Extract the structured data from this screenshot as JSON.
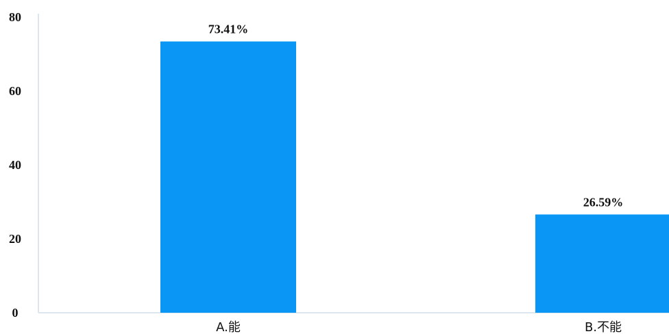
{
  "chart_data": {
    "type": "bar",
    "categories": [
      "A.能",
      "B.不能"
    ],
    "values": [
      73.41,
      26.59
    ],
    "data_labels": [
      "73.41%",
      "26.59%"
    ],
    "y_ticks": [
      "0",
      "20",
      "40",
      "60",
      "80"
    ],
    "y_tick_values": [
      0,
      20,
      40,
      60,
      80
    ],
    "ylim": [
      0,
      80
    ],
    "grid": false,
    "legend": "none",
    "bar_color": "#0a96f5",
    "axis_color": "#dde5ef"
  }
}
